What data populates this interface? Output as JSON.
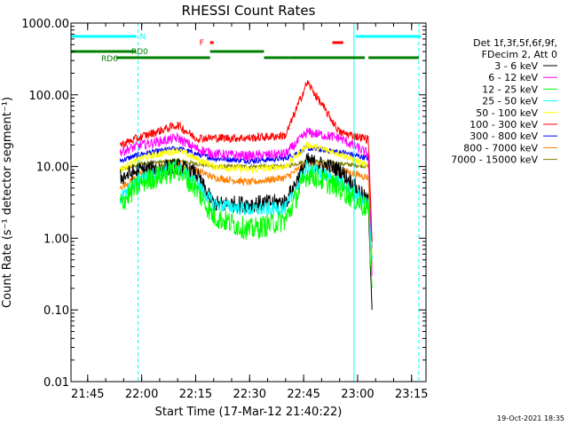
{
  "chart_data": {
    "type": "line",
    "title": "RHESSI Count Rates",
    "xlabel": "Start Time (17-Mar-12 21:40:22)",
    "ylabel": "Count Rate (s⁻¹ detector segment⁻¹)",
    "x_range": [
      "21:40:22",
      "23:19:00"
    ],
    "ylim": [
      0.01,
      1000
    ],
    "y_scale": "log",
    "x_ticks": [
      "21:45",
      "22:00",
      "22:15",
      "22:30",
      "22:45",
      "23:00",
      "23:15"
    ],
    "y_ticks": [
      "0.01",
      "0.10",
      "1.00",
      "10.00",
      "100.00",
      "1000.00"
    ],
    "legend": {
      "placement": "right",
      "header": [
        "Det 1f,3f,5f,6f,9f,",
        "FDecim 2, Att 0"
      ]
    },
    "series": [
      {
        "name": "3 - 6 keV",
        "color": "#000000",
        "times": [
          "21:54",
          "22:00",
          "22:10",
          "22:15",
          "22:20",
          "22:30",
          "22:40",
          "22:46",
          "22:55",
          "23:03",
          "23:04"
        ],
        "values": [
          7,
          9,
          10,
          8,
          3,
          3,
          3.2,
          12,
          9,
          3.2,
          0.1
        ]
      },
      {
        "name": "6 - 12 keV",
        "color": "#ff00ff",
        "times": [
          "21:54",
          "22:00",
          "22:10",
          "22:15",
          "22:20",
          "22:30",
          "22:40",
          "22:46",
          "22:55",
          "23:03",
          "23:04"
        ],
        "values": [
          16,
          20,
          25,
          18,
          15,
          14,
          15,
          30,
          25,
          15,
          0.3
        ]
      },
      {
        "name": "12 - 25 keV",
        "color": "#00ff00",
        "times": [
          "21:54",
          "22:00",
          "22:10",
          "22:15",
          "22:20",
          "22:30",
          "22:40",
          "22:46",
          "22:55",
          "23:03",
          "23:04"
        ],
        "values": [
          3,
          6,
          9,
          5,
          2,
          1.3,
          1.8,
          8,
          5,
          2.5,
          0.2
        ]
      },
      {
        "name": "25 - 50 keV",
        "color": "#00ffff",
        "times": [
          "21:54",
          "22:00",
          "22:10",
          "22:15",
          "22:20",
          "22:30",
          "22:40",
          "22:46",
          "22:55",
          "23:03",
          "23:04"
        ],
        "values": [
          3.5,
          7,
          10,
          6,
          3,
          2.5,
          2.6,
          10,
          6,
          3,
          0.5
        ]
      },
      {
        "name": "50 - 100 keV",
        "color": "#ffff00",
        "times": [
          "21:54",
          "22:00",
          "22:10",
          "22:15",
          "22:20",
          "22:30",
          "22:40",
          "22:46",
          "22:55",
          "23:03",
          "23:04"
        ],
        "values": [
          9,
          13,
          17,
          13,
          10,
          9,
          10,
          20,
          15,
          10,
          0.6
        ]
      },
      {
        "name": "100 - 300 keV",
        "color": "#ff0000",
        "times": [
          "21:54",
          "22:00",
          "22:10",
          "22:15",
          "22:20",
          "22:30",
          "22:40",
          "22:46",
          "22:55",
          "23:03",
          "23:04"
        ],
        "values": [
          20,
          26,
          38,
          25,
          25,
          25,
          27,
          150,
          30,
          24,
          0.9
        ]
      },
      {
        "name": "300 - 800 keV",
        "color": "#0000ff",
        "times": [
          "21:54",
          "22:00",
          "22:10",
          "22:15",
          "22:20",
          "22:30",
          "22:40",
          "22:46",
          "22:55",
          "23:03",
          "23:04"
        ],
        "values": [
          12,
          15,
          18,
          15,
          13,
          12,
          13,
          18,
          16,
          13,
          0.7
        ]
      },
      {
        "name": "800 - 7000 keV",
        "color": "#ff8000",
        "times": [
          "21:54",
          "22:00",
          "22:10",
          "22:15",
          "22:20",
          "22:30",
          "22:40",
          "22:46",
          "22:55",
          "23:03",
          "23:04"
        ],
        "values": [
          5,
          8,
          11,
          9,
          7,
          6,
          7,
          11,
          9,
          7,
          0.4
        ]
      },
      {
        "name": "7000 - 15000 keV",
        "color": "#808000",
        "times": [
          "21:54",
          "22:00",
          "22:10",
          "22:15",
          "22:20",
          "22:30",
          "22:40",
          "22:46",
          "22:55",
          "23:03",
          "23:04"
        ],
        "values": [
          9,
          11,
          12,
          11,
          10,
          10,
          10,
          12,
          11,
          10,
          0.5
        ]
      }
    ],
    "annotations": {
      "night": {
        "label": "N",
        "color": "#00ffff",
        "intervals": [
          [
            "21:40:22",
            "21:58:30"
          ],
          [
            "22:59:30",
            "23:17:30"
          ]
        ]
      },
      "flare": {
        "label": "F",
        "color": "#ff0000",
        "intervals": [
          [
            "22:19",
            "22:20"
          ],
          [
            "22:53",
            "22:56"
          ]
        ]
      },
      "rd0": {
        "label": "RD0",
        "color": "#008000",
        "intervals": [
          [
            "21:40:22",
            "21:58:30"
          ],
          [
            "22:19",
            "22:34"
          ]
        ]
      },
      "rd6": {
        "label": "RD6",
        "color": "#008000",
        "intervals": [
          [
            "21:53",
            "22:19"
          ],
          [
            "22:34",
            "22:41"
          ],
          [
            "22:41",
            "23:02"
          ],
          [
            "23:03",
            "23:17"
          ]
        ]
      },
      "vertical_lines": [
        {
          "time": "21:40:22",
          "color": "#00ffff",
          "style": "solid"
        },
        {
          "time": "21:59:00",
          "color": "#00ffff",
          "style": "dashed"
        },
        {
          "time": "22:59:00",
          "color": "#00ffff",
          "style": "solid"
        },
        {
          "time": "23:17:00",
          "color": "#00ffff",
          "style": "dashed"
        }
      ]
    }
  },
  "footer": {
    "timestamp": "19-Oct-2021 18:35"
  }
}
